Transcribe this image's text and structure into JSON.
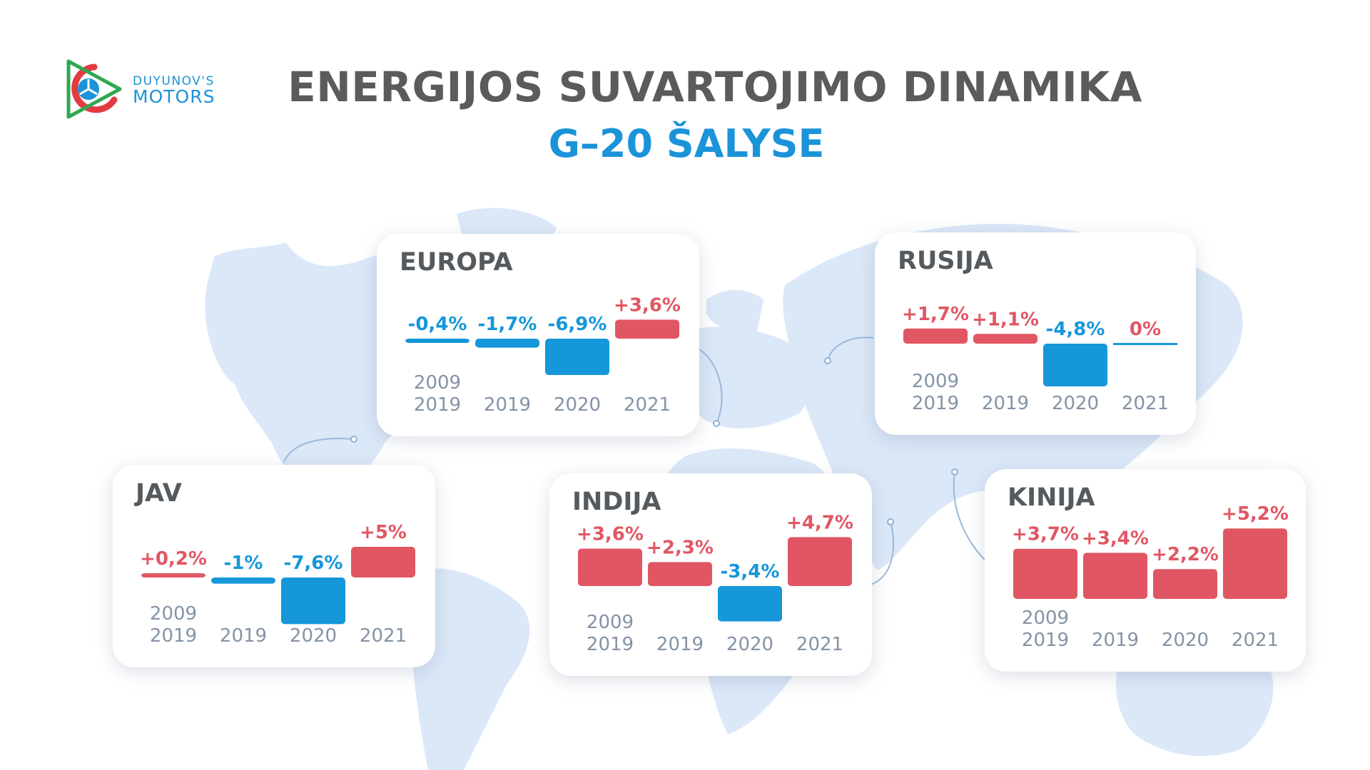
{
  "logo": {
    "line1": "DUYUNOV'S",
    "line2": "MOTORS"
  },
  "title": {
    "line1": "ENERGIJOS SUVARTOJIMO DINAMIKA",
    "line2": "G–20 ŠALYSE"
  },
  "colors": {
    "positive": "#e05763",
    "negative": "#1597d9",
    "title": "#5b5b5b",
    "accent": "#1b93d8",
    "axis_label": "#8493a6",
    "map": "#dbe8f8"
  },
  "chart_data": [
    {
      "type": "bar",
      "region": "EUROPA",
      "categories": [
        [
          "2009",
          "2019"
        ],
        [
          "2019"
        ],
        [
          "2020"
        ],
        [
          "2021"
        ]
      ],
      "values": [
        -0.4,
        -1.7,
        -6.9,
        3.6
      ],
      "labels": [
        "-0,4%",
        "-1,7%",
        "-6,9%",
        "+3,6%"
      ]
    },
    {
      "type": "bar",
      "region": "RUSIJA",
      "categories": [
        [
          "2009",
          "2019"
        ],
        [
          "2019"
        ],
        [
          "2020"
        ],
        [
          "2021"
        ]
      ],
      "values": [
        1.7,
        1.1,
        -4.8,
        0
      ],
      "labels": [
        "+1,7%",
        "+1,1%",
        "-4,8%",
        "0%"
      ]
    },
    {
      "type": "bar",
      "region": "JAV",
      "categories": [
        [
          "2009",
          "2019"
        ],
        [
          "2019"
        ],
        [
          "2020"
        ],
        [
          "2021"
        ]
      ],
      "values": [
        0.2,
        -1,
        -7.6,
        5
      ],
      "labels": [
        "+0,2%",
        "-1%",
        "-7,6%",
        "+5%"
      ]
    },
    {
      "type": "bar",
      "region": "INDIJA",
      "categories": [
        [
          "2009",
          "2019"
        ],
        [
          "2019"
        ],
        [
          "2020"
        ],
        [
          "2021"
        ]
      ],
      "values": [
        3.6,
        2.3,
        -3.4,
        4.7
      ],
      "labels": [
        "+3,6%",
        "+2,3%",
        "-3,4%",
        "+4,7%"
      ]
    },
    {
      "type": "bar",
      "region": "KINIJA",
      "categories": [
        [
          "2009",
          "2019"
        ],
        [
          "2019"
        ],
        [
          "2020"
        ],
        [
          "2021"
        ]
      ],
      "values": [
        3.7,
        3.4,
        2.2,
        5.2
      ],
      "labels": [
        "+3,7%",
        "+3,4%",
        "+2,2%",
        "+5,2%"
      ]
    }
  ]
}
